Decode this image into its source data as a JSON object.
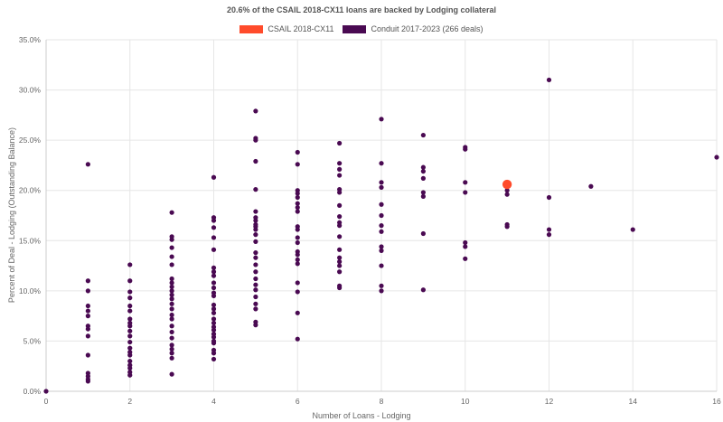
{
  "chart_data": {
    "type": "scatter",
    "title": "20.6% of the CSAIL 2018-CX11 loans are backed by Lodging collateral",
    "xlabel": "Number of Loans - Lodging",
    "ylabel": "Percent of Deal - Lodging (Outstanding Balance)",
    "xlim": [
      0,
      16
    ],
    "ylim": [
      0,
      35
    ],
    "x_ticks": [
      0,
      2,
      4,
      6,
      8,
      10,
      12,
      14,
      16
    ],
    "y_ticks": [
      0,
      5,
      10,
      15,
      20,
      25,
      30,
      35
    ],
    "y_tick_labels": [
      "0.0%",
      "5.0%",
      "10.0%",
      "15.0%",
      "20.0%",
      "25.0%",
      "30.0%",
      "35.0%"
    ],
    "grid": true,
    "legend_position": "top-center",
    "series": [
      {
        "name": "CSAIL 2018-CX11",
        "color": "#ff4b2b",
        "points": [
          [
            11,
            20.6
          ]
        ]
      },
      {
        "name": "Conduit 2017-2023 (266 deals)",
        "color": "#4a0a52",
        "points": [
          [
            0,
            0.0
          ],
          [
            1,
            22.6
          ],
          [
            1,
            11.0
          ],
          [
            1,
            10.0
          ],
          [
            1,
            8.5
          ],
          [
            1,
            8.0
          ],
          [
            1,
            7.5
          ],
          [
            1,
            6.5
          ],
          [
            1,
            6.2
          ],
          [
            1,
            5.5
          ],
          [
            1,
            3.6
          ],
          [
            1,
            1.8
          ],
          [
            1,
            1.5
          ],
          [
            1,
            1.2
          ],
          [
            1,
            1.0
          ],
          [
            2,
            12.6
          ],
          [
            2,
            11.0
          ],
          [
            2,
            9.9
          ],
          [
            2,
            9.3
          ],
          [
            2,
            8.5
          ],
          [
            2,
            8.0
          ],
          [
            2,
            7.2
          ],
          [
            2,
            6.8
          ],
          [
            2,
            6.5
          ],
          [
            2,
            6.0
          ],
          [
            2,
            5.5
          ],
          [
            2,
            4.9
          ],
          [
            2,
            4.3
          ],
          [
            2,
            3.9
          ],
          [
            2,
            3.6
          ],
          [
            2,
            3.0
          ],
          [
            2,
            2.6
          ],
          [
            2,
            2.3
          ],
          [
            2,
            1.9
          ],
          [
            2,
            1.6
          ],
          [
            3,
            17.8
          ],
          [
            3,
            15.4
          ],
          [
            3,
            15.1
          ],
          [
            3,
            14.3
          ],
          [
            3,
            13.4
          ],
          [
            3,
            12.6
          ],
          [
            3,
            11.2
          ],
          [
            3,
            10.8
          ],
          [
            3,
            10.4
          ],
          [
            3,
            10.0
          ],
          [
            3,
            9.6
          ],
          [
            3,
            9.2
          ],
          [
            3,
            8.7
          ],
          [
            3,
            8.2
          ],
          [
            3,
            7.6
          ],
          [
            3,
            7.2
          ],
          [
            3,
            6.5
          ],
          [
            3,
            5.9
          ],
          [
            3,
            5.3
          ],
          [
            3,
            4.6
          ],
          [
            3,
            4.2
          ],
          [
            3,
            3.8
          ],
          [
            3,
            3.3
          ],
          [
            3,
            1.7
          ],
          [
            4,
            21.3
          ],
          [
            4,
            17.3
          ],
          [
            4,
            17.0
          ],
          [
            4,
            16.3
          ],
          [
            4,
            15.3
          ],
          [
            4,
            14.1
          ],
          [
            4,
            12.3
          ],
          [
            4,
            11.9
          ],
          [
            4,
            11.5
          ],
          [
            4,
            10.8
          ],
          [
            4,
            10.3
          ],
          [
            4,
            9.8
          ],
          [
            4,
            9.5
          ],
          [
            4,
            8.6
          ],
          [
            4,
            8.2
          ],
          [
            4,
            7.8
          ],
          [
            4,
            7.2
          ],
          [
            4,
            6.8
          ],
          [
            4,
            6.4
          ],
          [
            4,
            6.1
          ],
          [
            4,
            5.7
          ],
          [
            4,
            5.4
          ],
          [
            4,
            5.0
          ],
          [
            4,
            4.8
          ],
          [
            4,
            4.1
          ],
          [
            4,
            3.8
          ],
          [
            4,
            3.2
          ],
          [
            5,
            27.9
          ],
          [
            5,
            25.2
          ],
          [
            5,
            25.0
          ],
          [
            5,
            22.9
          ],
          [
            5,
            20.1
          ],
          [
            5,
            17.9
          ],
          [
            5,
            17.3
          ],
          [
            5,
            17.0
          ],
          [
            5,
            16.6
          ],
          [
            5,
            16.4
          ],
          [
            5,
            16.1
          ],
          [
            5,
            15.6
          ],
          [
            5,
            14.9
          ],
          [
            5,
            13.8
          ],
          [
            5,
            13.3
          ],
          [
            5,
            12.6
          ],
          [
            5,
            11.9
          ],
          [
            5,
            11.2
          ],
          [
            5,
            10.6
          ],
          [
            5,
            10.1
          ],
          [
            5,
            9.4
          ],
          [
            5,
            8.7
          ],
          [
            5,
            8.2
          ],
          [
            5,
            6.9
          ],
          [
            5,
            6.6
          ],
          [
            6,
            23.8
          ],
          [
            6,
            22.6
          ],
          [
            6,
            20.0
          ],
          [
            6,
            19.7
          ],
          [
            6,
            19.3
          ],
          [
            6,
            18.7
          ],
          [
            6,
            18.3
          ],
          [
            6,
            17.9
          ],
          [
            6,
            16.4
          ],
          [
            6,
            16.1
          ],
          [
            6,
            15.3
          ],
          [
            6,
            14.8
          ],
          [
            6,
            13.9
          ],
          [
            6,
            13.6
          ],
          [
            6,
            13.1
          ],
          [
            6,
            12.7
          ],
          [
            6,
            10.8
          ],
          [
            6,
            9.9
          ],
          [
            6,
            7.8
          ],
          [
            6,
            5.2
          ],
          [
            7,
            24.7
          ],
          [
            7,
            22.7
          ],
          [
            7,
            22.1
          ],
          [
            7,
            21.5
          ],
          [
            7,
            20.1
          ],
          [
            7,
            19.8
          ],
          [
            7,
            18.5
          ],
          [
            7,
            17.4
          ],
          [
            7,
            16.8
          ],
          [
            7,
            16.5
          ],
          [
            7,
            15.4
          ],
          [
            7,
            14.1
          ],
          [
            7,
            13.3
          ],
          [
            7,
            12.9
          ],
          [
            7,
            12.5
          ],
          [
            7,
            11.9
          ],
          [
            7,
            10.5
          ],
          [
            7,
            10.3
          ],
          [
            8,
            27.1
          ],
          [
            8,
            22.7
          ],
          [
            8,
            20.8
          ],
          [
            8,
            20.3
          ],
          [
            8,
            18.6
          ],
          [
            8,
            17.5
          ],
          [
            8,
            16.5
          ],
          [
            8,
            15.9
          ],
          [
            8,
            14.4
          ],
          [
            8,
            14.0
          ],
          [
            8,
            12.5
          ],
          [
            8,
            10.5
          ],
          [
            8,
            10.0
          ],
          [
            9,
            25.5
          ],
          [
            9,
            22.3
          ],
          [
            9,
            21.9
          ],
          [
            9,
            21.2
          ],
          [
            9,
            19.8
          ],
          [
            9,
            19.4
          ],
          [
            9,
            15.7
          ],
          [
            9,
            10.1
          ],
          [
            10,
            24.3
          ],
          [
            10,
            24.1
          ],
          [
            10,
            20.8
          ],
          [
            10,
            19.8
          ],
          [
            10,
            14.8
          ],
          [
            10,
            14.4
          ],
          [
            10,
            13.2
          ],
          [
            11,
            20.0
          ],
          [
            11,
            19.6
          ],
          [
            11,
            16.6
          ],
          [
            11,
            16.4
          ],
          [
            12,
            31.0
          ],
          [
            12,
            19.3
          ],
          [
            12,
            16.1
          ],
          [
            12,
            15.6
          ],
          [
            13,
            20.4
          ],
          [
            14,
            16.1
          ],
          [
            16,
            23.3
          ]
        ]
      }
    ]
  }
}
